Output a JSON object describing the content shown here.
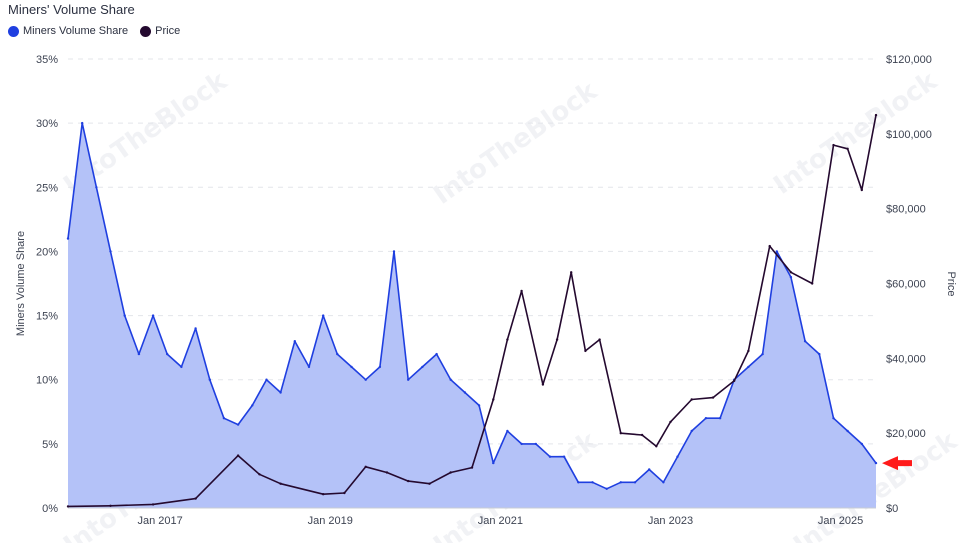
{
  "title": "Miners' Volume Share",
  "watermark": "IntoTheBlock",
  "legend": [
    {
      "name": "Miners Volume Share",
      "color": "#1f3fe0"
    },
    {
      "name": "Price",
      "color": "#24092f"
    }
  ],
  "colors": {
    "share_line": "#1f3fe0",
    "share_fill": "#b4c2f8",
    "price_line": "#24092f",
    "arrow": "#ff1a1a",
    "grid": "#e3e5ea"
  },
  "chart_data": {
    "type": "area",
    "title": "Miners' Volume Share",
    "y_left": {
      "label": "Miners Volume Share",
      "ticks": [
        "0%",
        "5%",
        "10%",
        "15%",
        "20%",
        "25%",
        "30%",
        "35%"
      ],
      "range": [
        0,
        35
      ]
    },
    "y_right": {
      "label": "Price",
      "ticks": [
        "$0",
        "$20,000",
        "$40,000",
        "$60,000",
        "$80,000",
        "$100,000",
        "$120,000"
      ],
      "range": [
        0,
        120000
      ]
    },
    "x_ticks": [
      "Jan 2017",
      "Jan 2019",
      "Jan 2021",
      "Jan 2023",
      "Jan 2025"
    ],
    "x_range": [
      "2015-12",
      "2025-06"
    ],
    "grid": true,
    "legend_position": "top-left",
    "annotation": "red arrow pointing at latest Miners Volume Share value",
    "series": [
      {
        "name": "Miners Volume Share",
        "unit": "%",
        "x": [
          "2015-12",
          "2016-02",
          "2016-04",
          "2016-06",
          "2016-08",
          "2016-10",
          "2016-12",
          "2017-02",
          "2017-04",
          "2017-06",
          "2017-08",
          "2017-10",
          "2017-12",
          "2018-02",
          "2018-04",
          "2018-06",
          "2018-08",
          "2018-10",
          "2018-12",
          "2019-02",
          "2019-04",
          "2019-06",
          "2019-08",
          "2019-10",
          "2019-12",
          "2020-02",
          "2020-04",
          "2020-06",
          "2020-08",
          "2020-10",
          "2020-12",
          "2021-02",
          "2021-04",
          "2021-06",
          "2021-08",
          "2021-10",
          "2021-12",
          "2022-02",
          "2022-04",
          "2022-06",
          "2022-08",
          "2022-10",
          "2022-12",
          "2023-02",
          "2023-04",
          "2023-06",
          "2023-08",
          "2023-10",
          "2023-12",
          "2024-02",
          "2024-04",
          "2024-06",
          "2024-08",
          "2024-10",
          "2024-12",
          "2025-02",
          "2025-04",
          "2025-06"
        ],
        "values": [
          21,
          30,
          25,
          20,
          15,
          12,
          15,
          12,
          11,
          14,
          10,
          7,
          6.5,
          8,
          10,
          9,
          13,
          11,
          15,
          12,
          11,
          10,
          11,
          20,
          10,
          11,
          12,
          10,
          9,
          8,
          3.5,
          6,
          5,
          5,
          4,
          4,
          2,
          2,
          1.5,
          2,
          2,
          3,
          2,
          4,
          6,
          7,
          7,
          10,
          11,
          12,
          20,
          18,
          13,
          12,
          7,
          6,
          5,
          3.5
        ]
      },
      {
        "name": "Price",
        "unit": "USD",
        "x": [
          "2015-12",
          "2016-06",
          "2016-12",
          "2017-06",
          "2017-12",
          "2018-03",
          "2018-06",
          "2018-12",
          "2019-03",
          "2019-06",
          "2019-09",
          "2019-12",
          "2020-03",
          "2020-06",
          "2020-09",
          "2020-12",
          "2021-02",
          "2021-04",
          "2021-07",
          "2021-09",
          "2021-11",
          "2022-01",
          "2022-03",
          "2022-06",
          "2022-09",
          "2022-11",
          "2023-01",
          "2023-04",
          "2023-07",
          "2023-10",
          "2023-12",
          "2024-03",
          "2024-06",
          "2024-09",
          "2024-12",
          "2025-02",
          "2025-04",
          "2025-06"
        ],
        "values": [
          430,
          600,
          950,
          2500,
          14000,
          9000,
          6500,
          3700,
          4000,
          11000,
          9500,
          7200,
          6500,
          9500,
          10800,
          29000,
          45000,
          58000,
          33000,
          45000,
          63000,
          42000,
          45000,
          20000,
          19500,
          16500,
          23000,
          29000,
          29500,
          34000,
          42000,
          70000,
          63000,
          60000,
          97000,
          96000,
          85000,
          105000
        ]
      }
    ]
  }
}
